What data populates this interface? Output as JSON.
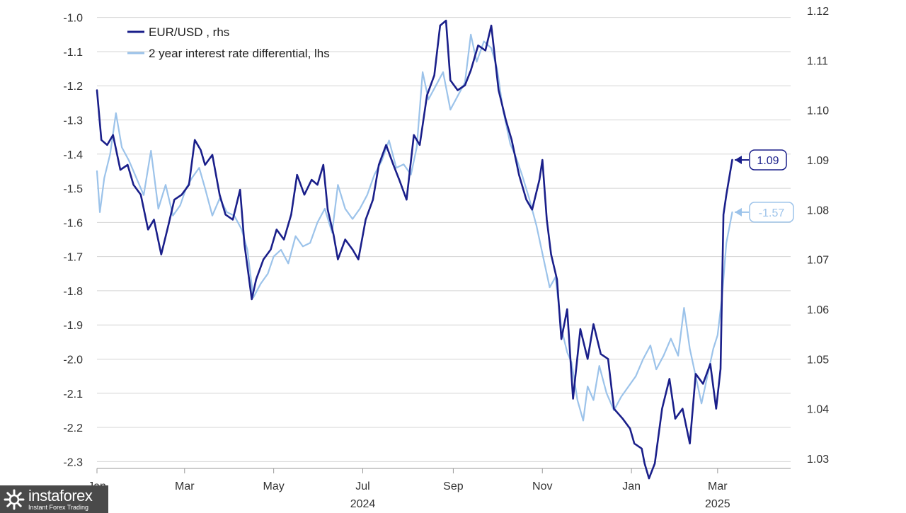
{
  "chart_data": {
    "type": "line",
    "title": "",
    "legend": {
      "placement": "top-left"
    },
    "grid": true,
    "left_axis": {
      "label": "lhs",
      "ylim": [
        -2.32,
        -0.98
      ],
      "ticks": [
        -1.0,
        -1.1,
        -1.2,
        -1.3,
        -1.4,
        -1.5,
        -1.6,
        -1.7,
        -1.8,
        -1.9,
        -2.0,
        -2.1,
        -2.2,
        -2.3
      ],
      "tick_labels": [
        "-1.0",
        "-1.1",
        "-1.2",
        "-1.3",
        "-1.4",
        "-1.5",
        "-1.6",
        "-1.7",
        "-1.8",
        "-1.9",
        "-2.0",
        "-2.1",
        "-2.2",
        "-2.3"
      ]
    },
    "right_axis": {
      "label": "rhs",
      "ylim": [
        1.028,
        1.12
      ],
      "ticks": [
        1.12,
        1.11,
        1.1,
        1.09,
        1.08,
        1.07,
        1.06,
        1.05,
        1.04,
        1.03
      ],
      "tick_labels": [
        "1.12",
        "1.11",
        "1.10",
        "1.09",
        "1.08",
        "1.07",
        "1.06",
        "1.05",
        "1.04",
        "1.03"
      ]
    },
    "x_axis": {
      "type": "date",
      "range": [
        "2024-01-01",
        "2025-04-20"
      ],
      "ticks": [
        "2024-01-01",
        "2024-03-01",
        "2024-05-01",
        "2024-07-01",
        "2024-09-01",
        "2024-11-01",
        "2025-01-01",
        "2025-03-01"
      ],
      "tick_labels": [
        "Jan",
        "Mar",
        "May",
        "Jul",
        "Sep",
        "Nov",
        "Jan",
        "Mar"
      ],
      "year_labels": [
        {
          "date": "2024-07-01",
          "text": "2024"
        },
        {
          "date": "2025-03-01",
          "text": "2025"
        }
      ]
    },
    "series": [
      {
        "name": "EUR/USD , rhs",
        "axis": "right",
        "color": "#1a1f8a",
        "end_label": "1.09",
        "points": [
          [
            "2024-01-01",
            1.104
          ],
          [
            "2024-01-04",
            1.094
          ],
          [
            "2024-01-08",
            1.093
          ],
          [
            "2024-01-12",
            1.095
          ],
          [
            "2024-01-17",
            1.088
          ],
          [
            "2024-01-22",
            1.089
          ],
          [
            "2024-01-26",
            1.085
          ],
          [
            "2024-01-31",
            1.083
          ],
          [
            "2024-02-05",
            1.076
          ],
          [
            "2024-02-09",
            1.078
          ],
          [
            "2024-02-14",
            1.071
          ],
          [
            "2024-02-19",
            1.077
          ],
          [
            "2024-02-23",
            1.082
          ],
          [
            "2024-02-28",
            1.083
          ],
          [
            "2024-03-04",
            1.085
          ],
          [
            "2024-03-08",
            1.094
          ],
          [
            "2024-03-12",
            1.092
          ],
          [
            "2024-03-15",
            1.089
          ],
          [
            "2024-03-20",
            1.091
          ],
          [
            "2024-03-25",
            1.083
          ],
          [
            "2024-03-29",
            1.079
          ],
          [
            "2024-04-03",
            1.078
          ],
          [
            "2024-04-08",
            1.084
          ],
          [
            "2024-04-11",
            1.073
          ],
          [
            "2024-04-16",
            1.062
          ],
          [
            "2024-04-19",
            1.066
          ],
          [
            "2024-04-24",
            1.07
          ],
          [
            "2024-04-29",
            1.072
          ],
          [
            "2024-05-03",
            1.076
          ],
          [
            "2024-05-08",
            1.074
          ],
          [
            "2024-05-13",
            1.079
          ],
          [
            "2024-05-17",
            1.087
          ],
          [
            "2024-05-22",
            1.083
          ],
          [
            "2024-05-27",
            1.086
          ],
          [
            "2024-05-31",
            1.085
          ],
          [
            "2024-06-04",
            1.089
          ],
          [
            "2024-06-07",
            1.08
          ],
          [
            "2024-06-11",
            1.075
          ],
          [
            "2024-06-14",
            1.07
          ],
          [
            "2024-06-19",
            1.074
          ],
          [
            "2024-06-24",
            1.072
          ],
          [
            "2024-06-28",
            1.07
          ],
          [
            "2024-07-03",
            1.078
          ],
          [
            "2024-07-08",
            1.082
          ],
          [
            "2024-07-12",
            1.089
          ],
          [
            "2024-07-17",
            1.093
          ],
          [
            "2024-07-22",
            1.089
          ],
          [
            "2024-07-26",
            1.086
          ],
          [
            "2024-07-31",
            1.082
          ],
          [
            "2024-08-05",
            1.095
          ],
          [
            "2024-08-09",
            1.093
          ],
          [
            "2024-08-14",
            1.103
          ],
          [
            "2024-08-19",
            1.107
          ],
          [
            "2024-08-23",
            1.117
          ],
          [
            "2024-08-27",
            1.118
          ],
          [
            "2024-08-30",
            1.106
          ],
          [
            "2024-09-04",
            1.104
          ],
          [
            "2024-09-09",
            1.105
          ],
          [
            "2024-09-13",
            1.108
          ],
          [
            "2024-09-18",
            1.113
          ],
          [
            "2024-09-23",
            1.112
          ],
          [
            "2024-09-27",
            1.117
          ],
          [
            "2024-10-02",
            1.104
          ],
          [
            "2024-10-07",
            1.098
          ],
          [
            "2024-10-11",
            1.094
          ],
          [
            "2024-10-16",
            1.087
          ],
          [
            "2024-10-21",
            1.082
          ],
          [
            "2024-10-25",
            1.08
          ],
          [
            "2024-10-30",
            1.086
          ],
          [
            "2024-11-01",
            1.09
          ],
          [
            "2024-11-04",
            1.078
          ],
          [
            "2024-11-07",
            1.071
          ],
          [
            "2024-11-11",
            1.066
          ],
          [
            "2024-11-14",
            1.054
          ],
          [
            "2024-11-18",
            1.06
          ],
          [
            "2024-11-22",
            1.042
          ],
          [
            "2024-11-27",
            1.056
          ],
          [
            "2024-12-02",
            1.05
          ],
          [
            "2024-12-06",
            1.057
          ],
          [
            "2024-12-11",
            1.051
          ],
          [
            "2024-12-16",
            1.05
          ],
          [
            "2024-12-20",
            1.04
          ],
          [
            "2024-12-26",
            1.038
          ],
          [
            "2024-12-31",
            1.036
          ],
          [
            "2025-01-03",
            1.033
          ],
          [
            "2025-01-08",
            1.032
          ],
          [
            "2025-01-10",
            1.029
          ],
          [
            "2025-01-13",
            1.026
          ],
          [
            "2025-01-17",
            1.029
          ],
          [
            "2025-01-22",
            1.04
          ],
          [
            "2025-01-27",
            1.046
          ],
          [
            "2025-01-31",
            1.038
          ],
          [
            "2025-02-05",
            1.04
          ],
          [
            "2025-02-10",
            1.033
          ],
          [
            "2025-02-14",
            1.047
          ],
          [
            "2025-02-19",
            1.045
          ],
          [
            "2025-02-24",
            1.049
          ],
          [
            "2025-02-28",
            1.04
          ],
          [
            "2025-03-03",
            1.048
          ],
          [
            "2025-03-05",
            1.079
          ],
          [
            "2025-03-07",
            1.083
          ],
          [
            "2025-03-11",
            1.09
          ]
        ]
      },
      {
        "name": "2 year interest rate differential, lhs",
        "axis": "left",
        "color": "#9cc3ea",
        "end_label": "-1.57",
        "points": [
          [
            "2024-01-01",
            -1.45
          ],
          [
            "2024-01-03",
            -1.57
          ],
          [
            "2024-01-06",
            -1.47
          ],
          [
            "2024-01-10",
            -1.4
          ],
          [
            "2024-01-14",
            -1.28
          ],
          [
            "2024-01-18",
            -1.38
          ],
          [
            "2024-01-23",
            -1.42
          ],
          [
            "2024-01-28",
            -1.47
          ],
          [
            "2024-02-02",
            -1.52
          ],
          [
            "2024-02-07",
            -1.39
          ],
          [
            "2024-02-12",
            -1.56
          ],
          [
            "2024-02-17",
            -1.49
          ],
          [
            "2024-02-22",
            -1.58
          ],
          [
            "2024-02-27",
            -1.55
          ],
          [
            "2024-03-02",
            -1.5
          ],
          [
            "2024-03-06",
            -1.47
          ],
          [
            "2024-03-11",
            -1.44
          ],
          [
            "2024-03-15",
            -1.5
          ],
          [
            "2024-03-20",
            -1.58
          ],
          [
            "2024-03-25",
            -1.53
          ],
          [
            "2024-03-30",
            -1.57
          ],
          [
            "2024-04-04",
            -1.58
          ],
          [
            "2024-04-09",
            -1.62
          ],
          [
            "2024-04-13",
            -1.68
          ],
          [
            "2024-04-17",
            -1.82
          ],
          [
            "2024-04-22",
            -1.78
          ],
          [
            "2024-04-27",
            -1.75
          ],
          [
            "2024-05-01",
            -1.7
          ],
          [
            "2024-05-06",
            -1.68
          ],
          [
            "2024-05-11",
            -1.72
          ],
          [
            "2024-05-16",
            -1.64
          ],
          [
            "2024-05-21",
            -1.67
          ],
          [
            "2024-05-26",
            -1.66
          ],
          [
            "2024-05-31",
            -1.6
          ],
          [
            "2024-06-05",
            -1.56
          ],
          [
            "2024-06-10",
            -1.63
          ],
          [
            "2024-06-14",
            -1.49
          ],
          [
            "2024-06-19",
            -1.56
          ],
          [
            "2024-06-24",
            -1.59
          ],
          [
            "2024-06-29",
            -1.56
          ],
          [
            "2024-07-04",
            -1.52
          ],
          [
            "2024-07-09",
            -1.46
          ],
          [
            "2024-07-14",
            -1.42
          ],
          [
            "2024-07-19",
            -1.36
          ],
          [
            "2024-07-24",
            -1.44
          ],
          [
            "2024-07-29",
            -1.43
          ],
          [
            "2024-08-03",
            -1.46
          ],
          [
            "2024-08-07",
            -1.38
          ],
          [
            "2024-08-11",
            -1.16
          ],
          [
            "2024-08-15",
            -1.24
          ],
          [
            "2024-08-20",
            -1.2
          ],
          [
            "2024-08-25",
            -1.16
          ],
          [
            "2024-08-30",
            -1.27
          ],
          [
            "2024-09-04",
            -1.23
          ],
          [
            "2024-09-09",
            -1.19
          ],
          [
            "2024-09-13",
            -1.05
          ],
          [
            "2024-09-17",
            -1.13
          ],
          [
            "2024-09-22",
            -1.07
          ],
          [
            "2024-09-27",
            -1.09
          ],
          [
            "2024-10-01",
            -1.15
          ],
          [
            "2024-10-05",
            -1.27
          ],
          [
            "2024-10-10",
            -1.37
          ],
          [
            "2024-10-14",
            -1.41
          ],
          [
            "2024-10-18",
            -1.46
          ],
          [
            "2024-10-23",
            -1.53
          ],
          [
            "2024-10-28",
            -1.61
          ],
          [
            "2024-11-02",
            -1.71
          ],
          [
            "2024-11-06",
            -1.79
          ],
          [
            "2024-11-10",
            -1.76
          ],
          [
            "2024-11-14",
            -1.91
          ],
          [
            "2024-11-18",
            -1.98
          ],
          [
            "2024-11-21",
            -2.01
          ],
          [
            "2024-11-25",
            -2.12
          ],
          [
            "2024-11-29",
            -2.18
          ],
          [
            "2024-12-02",
            -2.08
          ],
          [
            "2024-12-06",
            -2.12
          ],
          [
            "2024-12-10",
            -2.02
          ],
          [
            "2024-12-15",
            -2.1
          ],
          [
            "2024-12-20",
            -2.15
          ],
          [
            "2024-12-25",
            -2.11
          ],
          [
            "2024-12-30",
            -2.08
          ],
          [
            "2025-01-04",
            -2.05
          ],
          [
            "2025-01-09",
            -2.0
          ],
          [
            "2025-01-14",
            -1.96
          ],
          [
            "2025-01-18",
            -2.03
          ],
          [
            "2025-01-23",
            -1.99
          ],
          [
            "2025-01-28",
            -1.94
          ],
          [
            "2025-02-02",
            -1.99
          ],
          [
            "2025-02-06",
            -1.85
          ],
          [
            "2025-02-10",
            -1.97
          ],
          [
            "2025-02-14",
            -2.05
          ],
          [
            "2025-02-18",
            -2.13
          ],
          [
            "2025-02-22",
            -2.05
          ],
          [
            "2025-02-26",
            -1.97
          ],
          [
            "2025-03-01",
            -1.93
          ],
          [
            "2025-03-04",
            -1.82
          ],
          [
            "2025-03-07",
            -1.66
          ],
          [
            "2025-03-11",
            -1.57
          ]
        ]
      }
    ]
  },
  "watermark": {
    "brand": "instaforex",
    "tagline": "Instant Forex Trading",
    "icon": "instaforex-logo-icon"
  },
  "colors": {
    "eurusd": "#1a1f8a",
    "differential": "#9cc3ea",
    "grid": "#d4d4d4",
    "watermark_bg": "#4a4a4a"
  }
}
